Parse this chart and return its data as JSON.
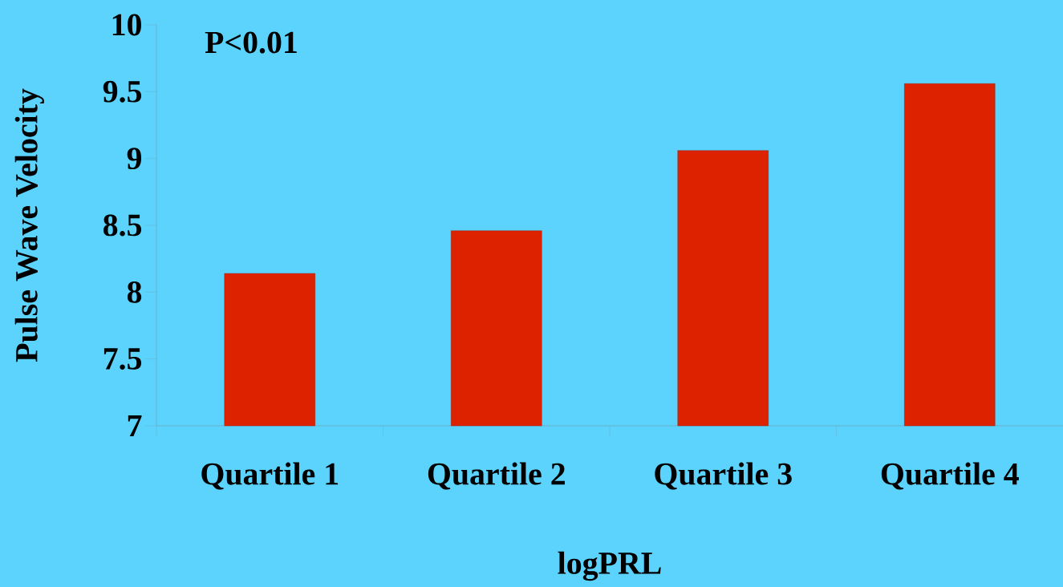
{
  "chart_data": {
    "type": "bar",
    "xlabel": "logPRL",
    "ylabel": "Pulse Wave Velocity",
    "categories": [
      "Quartile 1",
      "Quartile 2",
      "Quartile 3",
      "Quartile 4"
    ],
    "values": [
      8.14,
      8.46,
      9.06,
      9.56
    ],
    "color": "#dd2200",
    "ylim": [
      7,
      10
    ],
    "yticks": [
      7,
      7.5,
      8,
      8.5,
      9,
      9.5,
      10
    ],
    "grid": false,
    "annotations": [
      "P<0.01"
    ]
  }
}
